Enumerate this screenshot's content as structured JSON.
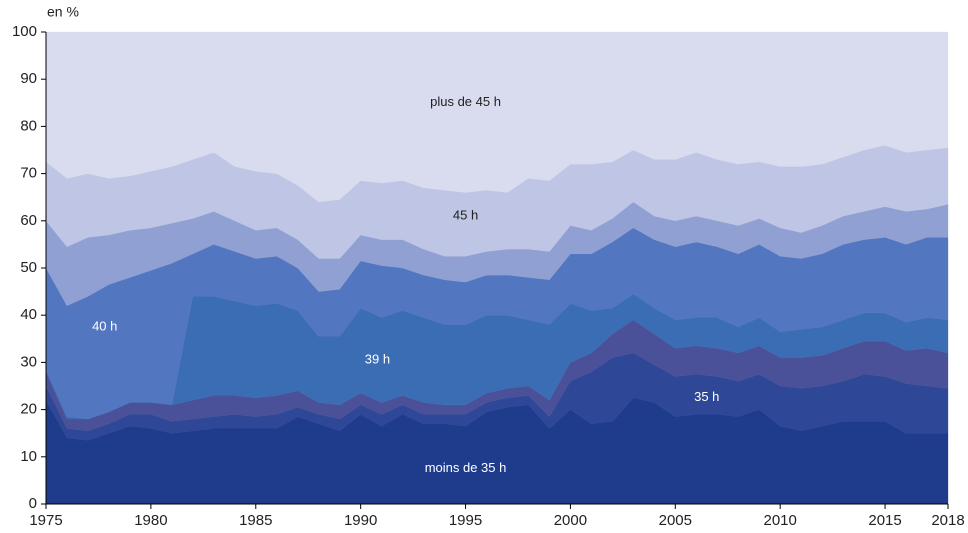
{
  "chart_data": {
    "type": "stacked-area",
    "y_label": "en %",
    "x": [
      1975,
      1976,
      1977,
      1978,
      1979,
      1980,
      1981,
      1982,
      1983,
      1984,
      1985,
      1986,
      1987,
      1988,
      1989,
      1990,
      1991,
      1992,
      1993,
      1994,
      1995,
      1996,
      1997,
      1998,
      1999,
      2000,
      2001,
      2002,
      2003,
      2004,
      2005,
      2006,
      2007,
      2008,
      2009,
      2010,
      2011,
      2012,
      2013,
      2014,
      2015,
      2016,
      2017,
      2018
    ],
    "xlim": [
      1975,
      2018
    ],
    "xticks": [
      1975,
      1980,
      1985,
      1990,
      1995,
      2000,
      2005,
      2010,
      2015,
      2018
    ],
    "ylim": [
      0,
      100
    ],
    "yticks": [
      0,
      10,
      20,
      30,
      40,
      50,
      60,
      70,
      80,
      90,
      100
    ],
    "series": [
      {
        "name": "moins de 35 h",
        "color": "#1f3c8c",
        "values": [
          22,
          14,
          13.5,
          15,
          16.5,
          16,
          15,
          15.5,
          16,
          16,
          16,
          16,
          18.5,
          17,
          15.5,
          19,
          16.5,
          19,
          17,
          17,
          16.5,
          19.5,
          20.5,
          21,
          16,
          20,
          17,
          17.5,
          22.5,
          21.5,
          18.5,
          19,
          19,
          18.5,
          20,
          16.5,
          15.5,
          16.5,
          17.5,
          17.5,
          17.5,
          15,
          15,
          15
        ]
      },
      {
        "name": "35 h",
        "color": "#2e4797",
        "values": [
          3,
          2,
          2,
          2,
          2.5,
          3,
          2.5,
          2.5,
          2.5,
          3,
          2.5,
          3,
          2,
          2,
          2.5,
          2,
          2.5,
          2,
          2,
          2,
          2.5,
          2,
          2,
          2,
          2.5,
          6,
          11,
          13.5,
          9.5,
          8,
          8.5,
          8.5,
          8,
          7.5,
          7.5,
          8.5,
          9,
          8.5,
          8.5,
          10,
          9.5,
          10.5,
          10,
          9.5
        ]
      },
      {
        "color": "#4b5199",
        "values": [
          3,
          2,
          2.5,
          2.5,
          2.5,
          2.5,
          3.5,
          4,
          4.5,
          4,
          4,
          4,
          3.5,
          2.5,
          3,
          2.5,
          2.5,
          2,
          2.5,
          2,
          2,
          2,
          2,
          2,
          3.5,
          4,
          4,
          5,
          7,
          6.5,
          6,
          6,
          6,
          6,
          6,
          6,
          6.5,
          6.5,
          7,
          7,
          7.5,
          7,
          8,
          7.5
        ]
      },
      {
        "name": "39 h",
        "color": "#3b6db5",
        "values": [
          0.5,
          0.5,
          0,
          0,
          0,
          0,
          0,
          22,
          21,
          20,
          19.5,
          19.5,
          17,
          14,
          14.5,
          18,
          18,
          18,
          18,
          17,
          17,
          16.5,
          15.5,
          14,
          16,
          12.5,
          9,
          5.5,
          5.5,
          5.5,
          6,
          6,
          6.5,
          5.5,
          6,
          5.5,
          6,
          6,
          6,
          6,
          6,
          6,
          6.5,
          7
        ]
      },
      {
        "name": "40 h",
        "color": "#5276c0",
        "values": [
          21.5,
          23.5,
          26,
          27,
          26.5,
          28,
          30,
          9,
          11,
          10.5,
          10,
          10,
          9,
          9.5,
          10,
          10,
          11,
          9,
          9,
          9.5,
          9,
          8.5,
          8.5,
          9,
          9.5,
          10.5,
          12,
          14,
          14,
          14.5,
          15.5,
          16,
          15,
          15.5,
          15.5,
          16,
          15,
          15.5,
          16,
          15.5,
          16,
          16.5,
          17,
          17.5
        ]
      },
      {
        "color": "#91a0d3",
        "values": [
          10,
          12.5,
          12.5,
          10.5,
          10,
          9,
          8.5,
          7.5,
          7,
          6.5,
          6,
          6,
          6,
          7,
          6.5,
          5.5,
          5.5,
          6,
          5.5,
          5,
          5.5,
          5,
          5.5,
          6,
          6,
          6,
          5,
          5,
          5.5,
          5,
          5.5,
          5.5,
          5.5,
          6,
          5.5,
          6,
          5.5,
          6,
          6,
          6,
          6.5,
          7,
          6,
          7
        ]
      },
      {
        "name": "45 h",
        "color": "#bfc5e4",
        "values": [
          12.5,
          14.5,
          13.5,
          12,
          11.5,
          12,
          12,
          12.5,
          12.5,
          11.5,
          12.5,
          11.5,
          11.5,
          12,
          12.5,
          11.5,
          12,
          12.5,
          13,
          14,
          13.5,
          13,
          12,
          15,
          15,
          13,
          14,
          12,
          11,
          12,
          13,
          13.5,
          13,
          13,
          12,
          13,
          14,
          13,
          12.5,
          13,
          13,
          12.5,
          12.5,
          12
        ]
      },
      {
        "name": "plus de 45 h",
        "color": "#d9dcef",
        "values": [
          27.5,
          31,
          30,
          31,
          30.5,
          29.5,
          28.5,
          27,
          25.5,
          28.5,
          29.5,
          30,
          32.5,
          36,
          35.5,
          31.5,
          32,
          31.5,
          33,
          33.5,
          34,
          33.5,
          34,
          31,
          31.5,
          28,
          28,
          27.5,
          25,
          27,
          27,
          25.5,
          27,
          28,
          27.5,
          28.5,
          28.5,
          28,
          26.5,
          25,
          24,
          25.5,
          25,
          24.5
        ]
      }
    ]
  }
}
